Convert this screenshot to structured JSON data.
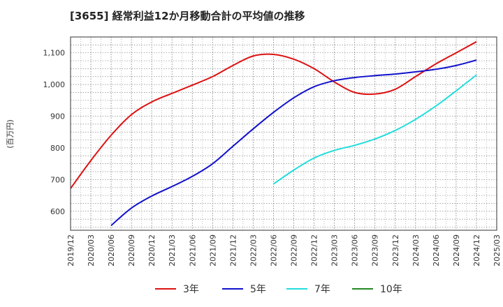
{
  "chart_data": {
    "type": "line",
    "title": "[3655]  経常利益12か月移動合計の平均値の推移",
    "ylabel": "(百万円)",
    "xlabel": "",
    "ylim": [
      540,
      1150
    ],
    "yticks": [
      600,
      700,
      800,
      900,
      1000,
      1100
    ],
    "ytick_labels": [
      "600",
      "700",
      "800",
      "900",
      "1,000",
      "1,100"
    ],
    "xticks": [
      "2019/12",
      "2020/03",
      "2020/06",
      "2020/09",
      "2020/12",
      "2021/03",
      "2021/06",
      "2021/09",
      "2021/12",
      "2022/03",
      "2022/06",
      "2022/09",
      "2022/12",
      "2023/03",
      "2023/06",
      "2023/09",
      "2023/12",
      "2024/03",
      "2024/06",
      "2024/09",
      "2024/12",
      "2025/03"
    ],
    "grid": true,
    "legend_position": "bottom",
    "series": [
      {
        "name": "3年",
        "color": "#dd1111",
        "points": [
          [
            "2019/12",
            672
          ],
          [
            "2020/03",
            760
          ],
          [
            "2020/06",
            840
          ],
          [
            "2020/09",
            905
          ],
          [
            "2020/12",
            945
          ],
          [
            "2021/03",
            972
          ],
          [
            "2021/06",
            998
          ],
          [
            "2021/09",
            1025
          ],
          [
            "2021/12",
            1060
          ],
          [
            "2022/03",
            1090
          ],
          [
            "2022/06",
            1095
          ],
          [
            "2022/09",
            1080
          ],
          [
            "2022/12",
            1050
          ],
          [
            "2023/03",
            1008
          ],
          [
            "2023/06",
            975
          ],
          [
            "2023/09",
            970
          ],
          [
            "2023/12",
            985
          ],
          [
            "2024/03",
            1025
          ],
          [
            "2024/06",
            1065
          ],
          [
            "2024/09",
            1100
          ],
          [
            "2024/12",
            1135
          ]
        ]
      },
      {
        "name": "5年",
        "color": "#1111cc",
        "points": [
          [
            "2020/06",
            555
          ],
          [
            "2020/09",
            610
          ],
          [
            "2020/12",
            648
          ],
          [
            "2021/03",
            678
          ],
          [
            "2021/06",
            710
          ],
          [
            "2021/09",
            750
          ],
          [
            "2021/12",
            805
          ],
          [
            "2022/03",
            860
          ],
          [
            "2022/06",
            912
          ],
          [
            "2022/09",
            958
          ],
          [
            "2022/12",
            993
          ],
          [
            "2023/03",
            1012
          ],
          [
            "2023/06",
            1022
          ],
          [
            "2023/09",
            1028
          ],
          [
            "2023/12",
            1033
          ],
          [
            "2024/03",
            1040
          ],
          [
            "2024/06",
            1048
          ],
          [
            "2024/09",
            1060
          ],
          [
            "2024/12",
            1077
          ]
        ]
      },
      {
        "name": "7年",
        "color": "#22dddd",
        "points": [
          [
            "2022/06",
            686
          ],
          [
            "2022/09",
            730
          ],
          [
            "2022/12",
            768
          ],
          [
            "2023/03",
            792
          ],
          [
            "2023/06",
            808
          ],
          [
            "2023/09",
            828
          ],
          [
            "2023/12",
            855
          ],
          [
            "2024/03",
            890
          ],
          [
            "2024/06",
            932
          ],
          [
            "2024/09",
            980
          ],
          [
            "2024/12",
            1030
          ]
        ]
      },
      {
        "name": "10年",
        "color": "#228822",
        "points": []
      }
    ]
  }
}
